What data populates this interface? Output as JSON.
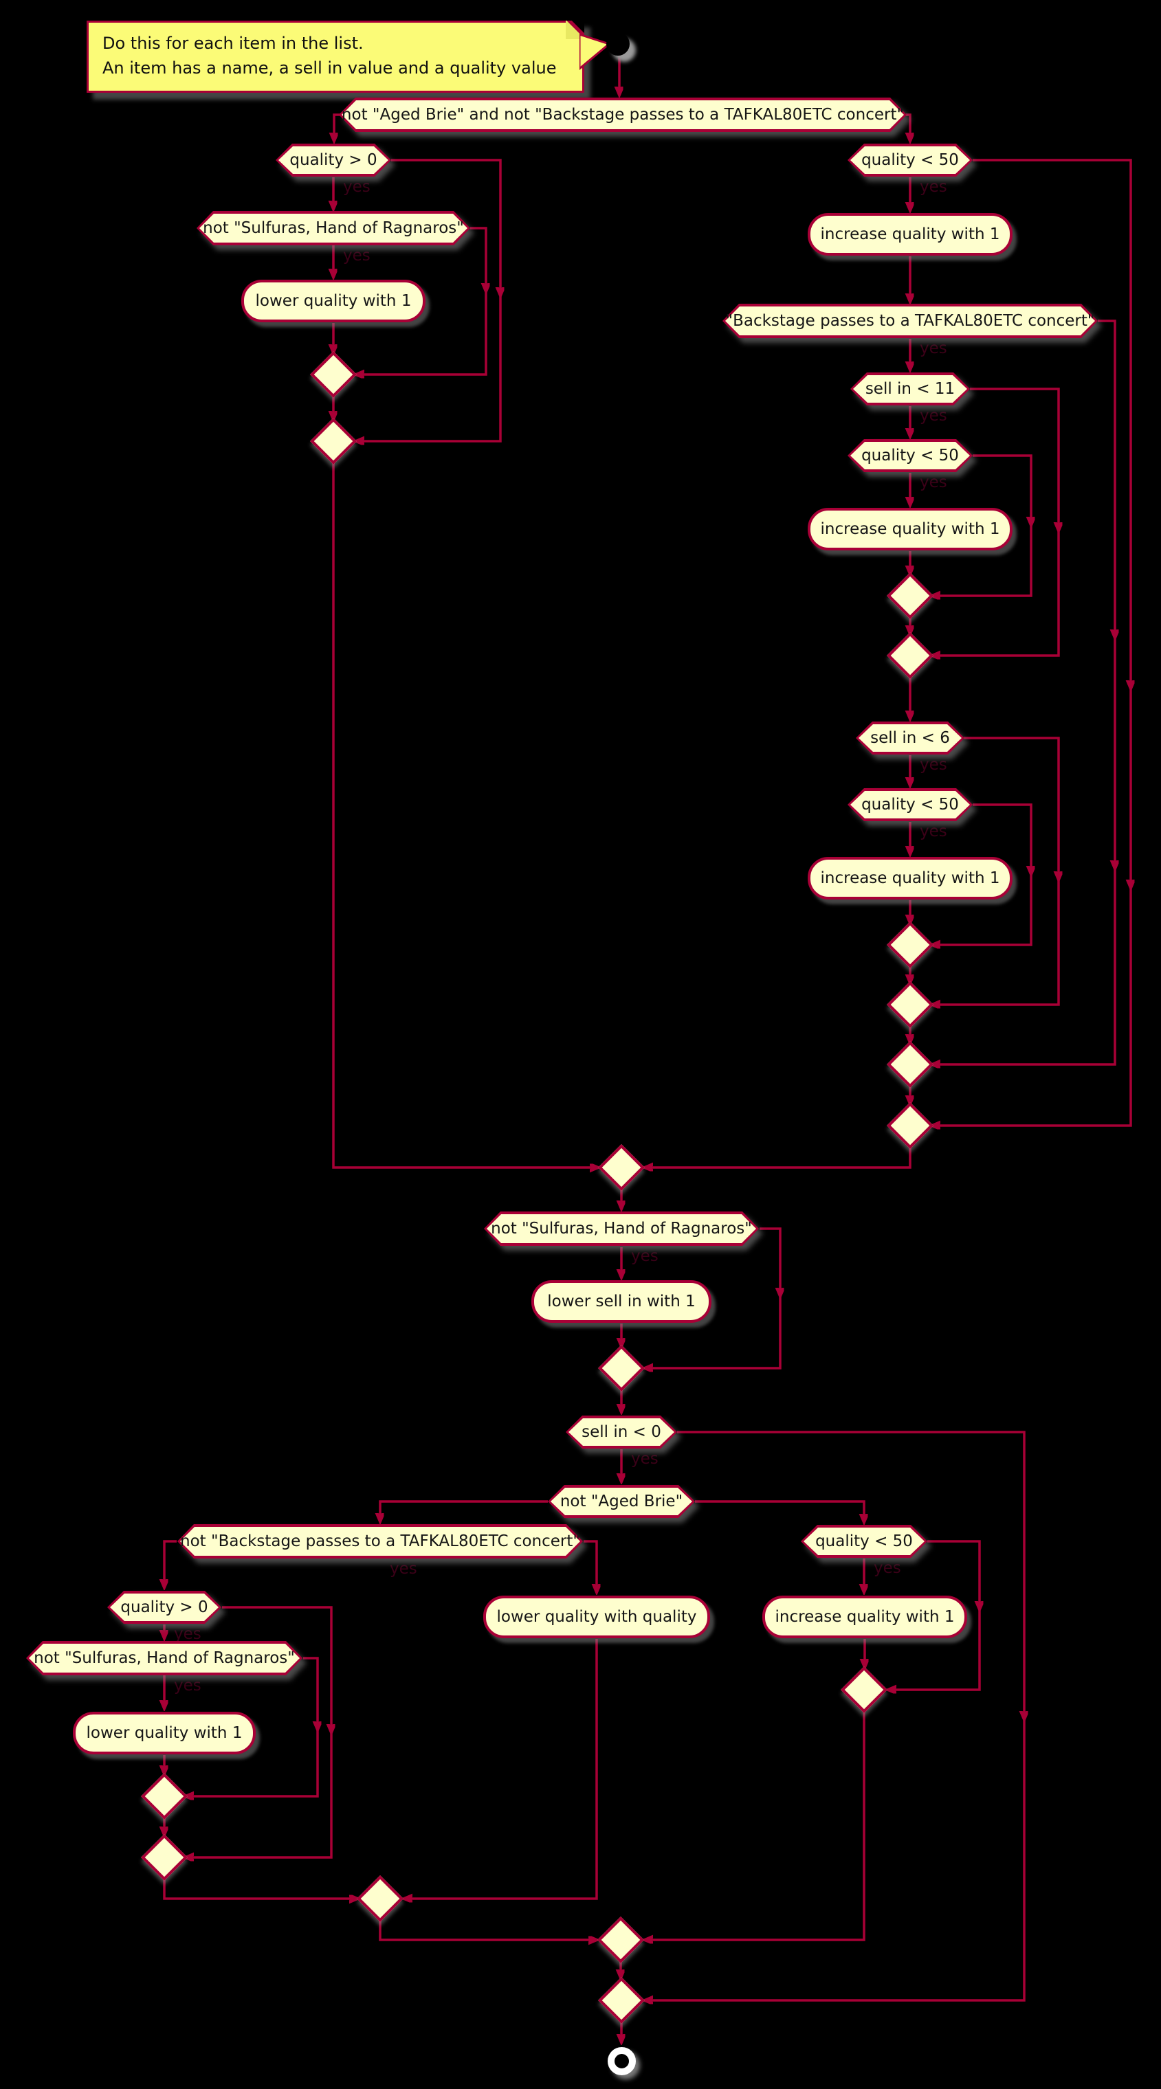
{
  "diagram": {
    "note": {
      "line1": "Do this for each item in the list.",
      "line2": "An item has a name, a sell in value and a quality value"
    },
    "yes_label": "yes",
    "colors": {
      "background": "#000000",
      "accent": "#A80036",
      "shape_fill": "#FEFECE",
      "note_fill": "#FBFB77",
      "text": "#161616",
      "yes_text": "#3a0017"
    },
    "nodes": [
      {
        "id": "start-node",
        "kind": "start",
        "label": ""
      },
      {
        "id": "condition-not-aged-brie-and-not-backstage",
        "kind": "hexagon",
        "label": "not \"Aged Brie\" and not \"Backstage passes to a TAFKAL80ETC concert\"",
        "yes": false
      },
      {
        "id": "condition-quality-gt-0",
        "kind": "hexagon",
        "label": "quality > 0",
        "yes": true
      },
      {
        "id": "condition-not-sulfuras",
        "kind": "hexagon",
        "label": "not \"Sulfuras, Hand of Ragnaros\"",
        "yes": true
      },
      {
        "id": "activity-lower-quality-with-1",
        "kind": "activity",
        "label": "lower quality with 1"
      },
      {
        "id": "merge-diamond-1",
        "kind": "diamond",
        "label": ""
      },
      {
        "id": "merge-diamond-2",
        "kind": "diamond",
        "label": ""
      },
      {
        "id": "condition-quality-lt-50",
        "kind": "hexagon",
        "label": "quality < 50",
        "yes": true
      },
      {
        "id": "activity-increase-quality-with-1",
        "kind": "activity",
        "label": "increase quality with 1"
      },
      {
        "id": "condition-backstage-passes",
        "kind": "hexagon",
        "label": "\"Backstage passes to a TAFKAL80ETC concert\"",
        "yes": true
      },
      {
        "id": "condition-sell-in-lt-11",
        "kind": "hexagon",
        "label": "sell in < 11",
        "yes": true
      },
      {
        "id": "condition-quality-lt-50-2",
        "kind": "hexagon",
        "label": "quality < 50",
        "yes": true
      },
      {
        "id": "activity-increase-quality-with-1-2",
        "kind": "activity",
        "label": "increase quality with 1"
      },
      {
        "id": "merge-diamond-3",
        "kind": "diamond",
        "label": ""
      },
      {
        "id": "merge-diamond-4",
        "kind": "diamond",
        "label": ""
      },
      {
        "id": "condition-sell-in-lt-6",
        "kind": "hexagon",
        "label": "sell in < 6",
        "yes": true
      },
      {
        "id": "condition-quality-lt-50-3",
        "kind": "hexagon",
        "label": "quality < 50",
        "yes": true
      },
      {
        "id": "activity-increase-quality-with-1-3",
        "kind": "activity",
        "label": "increase quality with 1"
      },
      {
        "id": "merge-diamond-5",
        "kind": "diamond",
        "label": ""
      },
      {
        "id": "merge-diamond-6",
        "kind": "diamond",
        "label": ""
      },
      {
        "id": "merge-diamond-7",
        "kind": "diamond",
        "label": ""
      },
      {
        "id": "merge-diamond-8",
        "kind": "diamond",
        "label": ""
      },
      {
        "id": "merge-diamond-9",
        "kind": "diamond",
        "label": ""
      },
      {
        "id": "condition-not-sulfuras-2",
        "kind": "hexagon",
        "label": "not \"Sulfuras, Hand of Ragnaros\"",
        "yes": true
      },
      {
        "id": "activity-lower-sell-in-with-1",
        "kind": "activity",
        "label": "lower sell in with 1"
      },
      {
        "id": "merge-diamond-10",
        "kind": "diamond",
        "label": ""
      },
      {
        "id": "condition-sell-in-lt-0",
        "kind": "hexagon",
        "label": "sell in < 0",
        "yes": true
      },
      {
        "id": "condition-not-aged-brie",
        "kind": "hexagon",
        "label": "not \"Aged Brie\"",
        "yes": false
      },
      {
        "id": "condition-not-backstage-passes",
        "kind": "hexagon",
        "label": "not \"Backstage passes to a TAFKAL80ETC concert\"",
        "yes": true
      },
      {
        "id": "condition-quality-lt-50-4",
        "kind": "hexagon",
        "label": "quality < 50",
        "yes": true
      },
      {
        "id": "condition-quality-gt-0-2",
        "kind": "hexagon",
        "label": "quality > 0",
        "yes": true
      },
      {
        "id": "activity-lower-quality-with-quality",
        "kind": "activity",
        "label": "lower quality with quality"
      },
      {
        "id": "activity-increase-quality-with-1-4",
        "kind": "activity",
        "label": "increase quality with 1"
      },
      {
        "id": "condition-not-sulfuras-3",
        "kind": "hexagon",
        "label": "not \"Sulfuras, Hand of Ragnaros\"",
        "yes": true
      },
      {
        "id": "activity-lower-quality-with-1-2",
        "kind": "activity",
        "label": "lower quality with 1"
      },
      {
        "id": "merge-diamond-11",
        "kind": "diamond",
        "label": ""
      },
      {
        "id": "merge-diamond-12",
        "kind": "diamond",
        "label": ""
      },
      {
        "id": "merge-diamond-13",
        "kind": "diamond",
        "label": ""
      },
      {
        "id": "merge-diamond-14",
        "kind": "diamond",
        "label": ""
      },
      {
        "id": "merge-diamond-15",
        "kind": "diamond",
        "label": ""
      },
      {
        "id": "merge-diamond-16",
        "kind": "diamond",
        "label": ""
      },
      {
        "id": "end-node",
        "kind": "end",
        "label": ""
      }
    ]
  }
}
